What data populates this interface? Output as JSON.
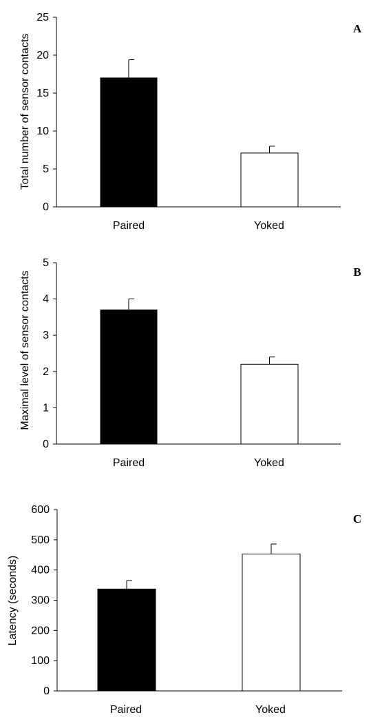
{
  "chart_data": [
    {
      "type": "bar",
      "panel_label": "A",
      "categories": [
        "Paired",
        "Yoked"
      ],
      "values": [
        17,
        7.1
      ],
      "errors": [
        2.4,
        0.9
      ],
      "fills": [
        "#000000",
        "#ffffff"
      ],
      "ylabel": "Total number of sensor contacts",
      "ylim": [
        0,
        25
      ],
      "yticks": [
        "0",
        "5",
        "10",
        "15",
        "20",
        "25"
      ],
      "grid": false
    },
    {
      "type": "bar",
      "panel_label": "B",
      "categories": [
        "Paired",
        "Yoked"
      ],
      "values": [
        3.7,
        2.2
      ],
      "errors": [
        0.3,
        0.2
      ],
      "fills": [
        "#000000",
        "#ffffff"
      ],
      "ylabel": "Maximal level of sensor contacts",
      "ylim": [
        0,
        5
      ],
      "yticks": [
        "0",
        "1",
        "2",
        "3",
        "4",
        "5"
      ],
      "grid": false
    },
    {
      "type": "bar",
      "panel_label": "C",
      "categories": [
        "Paired",
        "Yoked"
      ],
      "values": [
        337,
        453
      ],
      "errors": [
        28,
        33
      ],
      "fills": [
        "#000000",
        "#ffffff"
      ],
      "ylabel": "Latency (seconds)",
      "ylim": [
        0,
        600
      ],
      "yticks": [
        "0",
        "100",
        "200",
        "300",
        "400",
        "500",
        "600"
      ],
      "grid": false
    }
  ]
}
